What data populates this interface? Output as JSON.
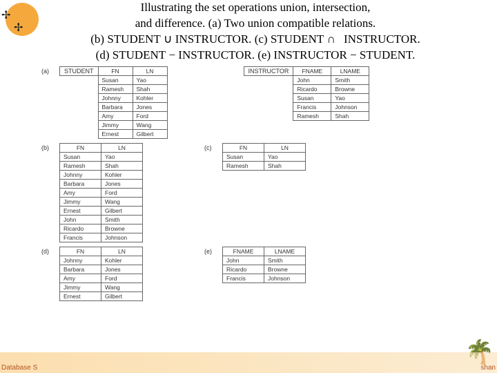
{
  "caption": {
    "line1": "Illustrating the set operations union, intersection,",
    "line2": "and difference. (a) Two union compatible relations.",
    "line3_parts": {
      "b": "(b)",
      "b_left": "STUDENT",
      "b_op": "∪",
      "b_right": "INSTRUCTOR.",
      "c": "(c)",
      "c_left": "STUDENT",
      "c_op": "∩",
      "c_right": "INSTRUCTOR."
    },
    "line4_parts": {
      "d": "(d)",
      "d_left": "STUDENT",
      "d_op": "−",
      "d_right": "INSTRUCTOR.",
      "e": "(e)",
      "e_left": "INSTRUCTOR",
      "e_op": "−",
      "e_right": "STUDENT."
    }
  },
  "labels": {
    "a": "(a)",
    "b": "(b)",
    "c": "(c)",
    "d": "(d)",
    "e": "(e)"
  },
  "student": {
    "name": "STUDENT",
    "cols": [
      "FN",
      "LN"
    ],
    "rows": [
      [
        "Susan",
        "Yao"
      ],
      [
        "Ramesh",
        "Shah"
      ],
      [
        "Johnny",
        "Kohler"
      ],
      [
        "Barbara",
        "Jones"
      ],
      [
        "Amy",
        "Ford"
      ],
      [
        "Jimmy",
        "Wang"
      ],
      [
        "Ernest",
        "Gilbert"
      ]
    ]
  },
  "instructor": {
    "name": "INSTRUCTOR",
    "cols": [
      "FNAME",
      "LNAME"
    ],
    "rows": [
      [
        "John",
        "Smith"
      ],
      [
        "Ricardo",
        "Browne"
      ],
      [
        "Susan",
        "Yao"
      ],
      [
        "Francis",
        "Johnson"
      ],
      [
        "Ramesh",
        "Shah"
      ]
    ]
  },
  "union_b": {
    "cols": [
      "FN",
      "LN"
    ],
    "rows": [
      [
        "Susan",
        "Yao"
      ],
      [
        "Ramesh",
        "Shah"
      ],
      [
        "Johnny",
        "Kohler"
      ],
      [
        "Barbara",
        "Jones"
      ],
      [
        "Amy",
        "Ford"
      ],
      [
        "Jimmy",
        "Wang"
      ],
      [
        "Ernest",
        "Gilbert"
      ],
      [
        "John",
        "Smith"
      ],
      [
        "Ricardo",
        "Browne"
      ],
      [
        "Francis",
        "Johnson"
      ]
    ]
  },
  "intersect_c": {
    "cols": [
      "FN",
      "LN"
    ],
    "rows": [
      [
        "Susan",
        "Yao"
      ],
      [
        "Ramesh",
        "Shah"
      ]
    ]
  },
  "diff_d": {
    "cols": [
      "FN",
      "LN"
    ],
    "rows": [
      [
        "Johnny",
        "Kohler"
      ],
      [
        "Barbara",
        "Jones"
      ],
      [
        "Amy",
        "Ford"
      ],
      [
        "Jimmy",
        "Wang"
      ],
      [
        "Ernest",
        "Gilbert"
      ]
    ]
  },
  "diff_e": {
    "cols": [
      "FNAME",
      "LNAME"
    ],
    "rows": [
      [
        "John",
        "Smith"
      ],
      [
        "Ricardo",
        "Browne"
      ],
      [
        "Francis",
        "Johnson"
      ]
    ]
  },
  "footer": {
    "left": "Database S",
    "right": "shan"
  },
  "colors": {
    "accent": "#f5a93d",
    "border": "#666666",
    "text": "#333333"
  }
}
